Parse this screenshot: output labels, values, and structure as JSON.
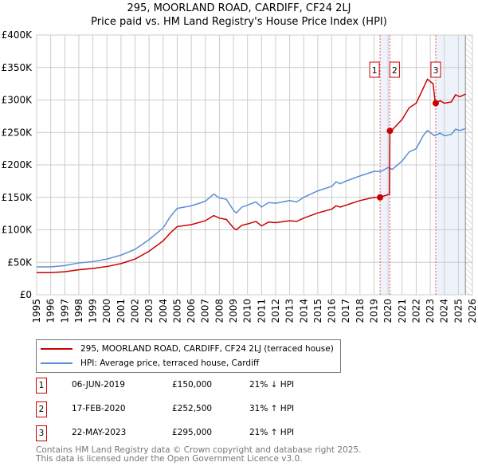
{
  "chart_data": {
    "type": "line",
    "title": "295, MOORLAND ROAD, CARDIFF, CF24 2LJ",
    "subtitle": "Price paid vs. HM Land Registry's House Price Index (HPI)",
    "xlim": [
      1995,
      2026
    ],
    "ylim": [
      0,
      400000
    ],
    "x_ticks": [
      "1995",
      "1996",
      "1997",
      "1998",
      "1999",
      "2000",
      "2001",
      "2002",
      "2003",
      "2004",
      "2005",
      "2006",
      "2007",
      "2008",
      "2009",
      "2010",
      "2011",
      "2012",
      "2013",
      "2014",
      "2015",
      "2016",
      "2017",
      "2018",
      "2019",
      "2020",
      "2021",
      "2022",
      "2023",
      "2024",
      "2025",
      "2026"
    ],
    "y_ticks": [
      {
        "v": 0,
        "l": "£0"
      },
      {
        "v": 50000,
        "l": "£50K"
      },
      {
        "v": 100000,
        "l": "£100K"
      },
      {
        "v": 150000,
        "l": "£150K"
      },
      {
        "v": 200000,
        "l": "£200K"
      },
      {
        "v": 250000,
        "l": "£250K"
      },
      {
        "v": 300000,
        "l": "£300K"
      },
      {
        "v": 350000,
        "l": "£350K"
      },
      {
        "v": 400000,
        "l": "£400K"
      }
    ],
    "grid": true,
    "series": [
      {
        "name": "295, MOORLAND ROAD, CARDIFF, CF24 2LJ (terraced house)",
        "color": "#cc0000",
        "x": [
          1995,
          1996,
          1997,
          1998,
          1999,
          2000,
          2001,
          2002,
          2003,
          2004,
          2004.5,
          2005,
          2006,
          2007,
          2007.6,
          2008,
          2008.5,
          2009,
          2009.2,
          2009.6,
          2010,
          2010.6,
          2011,
          2011.5,
          2012,
          2013,
          2013.5,
          2014,
          2015,
          2016,
          2016.3,
          2016.6,
          2017,
          2018,
          2019,
          2019.43,
          2020.1,
          2020.13,
          2020.3,
          2021,
          2021.5,
          2022,
          2022.5,
          2022.8,
          2023.2,
          2023.35,
          2023.39,
          2023.7,
          2024,
          2024.5,
          2024.8,
          2025.1,
          2025.5
        ],
        "y": [
          34000,
          34000,
          35500,
          38500,
          40500,
          43500,
          48000,
          55000,
          67000,
          83000,
          95000,
          105000,
          108000,
          114000,
          122000,
          118000,
          116000,
          103000,
          100000,
          107000,
          109000,
          113000,
          106000,
          112000,
          111000,
          114000,
          113000,
          118000,
          126000,
          132000,
          137000,
          135000,
          138000,
          145000,
          150000,
          150000,
          155000,
          252500,
          254000,
          270000,
          288000,
          295000,
          318000,
          332000,
          325000,
          297000,
          295000,
          299000,
          295000,
          297000,
          308000,
          305000,
          309000
        ]
      },
      {
        "name": "HPI: Average price, terraced house, Cardiff",
        "color": "#5b8ed6",
        "x": [
          1995,
          1996,
          1997,
          1998,
          1999,
          2000,
          2001,
          2002,
          2003,
          2004,
          2004.5,
          2005,
          2006,
          2007,
          2007.6,
          2008,
          2008.5,
          2009,
          2009.2,
          2009.6,
          2010,
          2010.6,
          2011,
          2011.5,
          2012,
          2013,
          2013.5,
          2014,
          2015,
          2016,
          2016.3,
          2016.6,
          2017,
          2018,
          2019,
          2019.5,
          2020,
          2020.3,
          2021,
          2021.5,
          2022,
          2022.5,
          2022.8,
          2023.3,
          2023.7,
          2024,
          2024.5,
          2024.8,
          2025.1,
          2025.5
        ],
        "y": [
          43000,
          43000,
          45000,
          49000,
          51000,
          55000,
          61000,
          70000,
          85000,
          103000,
          120000,
          133000,
          137000,
          144000,
          155000,
          149000,
          147000,
          130000,
          126000,
          135000,
          138000,
          143000,
          135000,
          142000,
          141000,
          145000,
          143000,
          150000,
          160000,
          167000,
          174000,
          171000,
          175000,
          183000,
          190000,
          190000,
          196000,
          193000,
          206000,
          220000,
          225000,
          245000,
          253000,
          245000,
          249000,
          245000,
          247000,
          255000,
          253000,
          256000
        ]
      }
    ],
    "sales": [
      {
        "label": "1",
        "date": "06-JUN-2019",
        "x": 2019.43,
        "price": "£150,000",
        "value": 150000,
        "hpi": "21% ↓ HPI"
      },
      {
        "label": "2",
        "date": "17-FEB-2020",
        "x": 2020.13,
        "price": "£252,500",
        "value": 252500,
        "hpi": "31% ↑ HPI"
      },
      {
        "label": "3",
        "date": "22-MAY-2023",
        "x": 2023.39,
        "price": "£295,000",
        "value": 295000,
        "hpi": "21% ↑ HPI"
      }
    ],
    "data_end": 2025.5,
    "legend": {
      "placement": "below",
      "red": "295, MOORLAND ROAD, CARDIFF, CF24 2LJ (terraced house)",
      "blue": "HPI: Average price, terraced house, Cardiff"
    }
  },
  "footer": {
    "line1": "Contains HM Land Registry data © Crown copyright and database right 2025.",
    "line2": "This data is licensed under the Open Government Licence v3.0."
  }
}
